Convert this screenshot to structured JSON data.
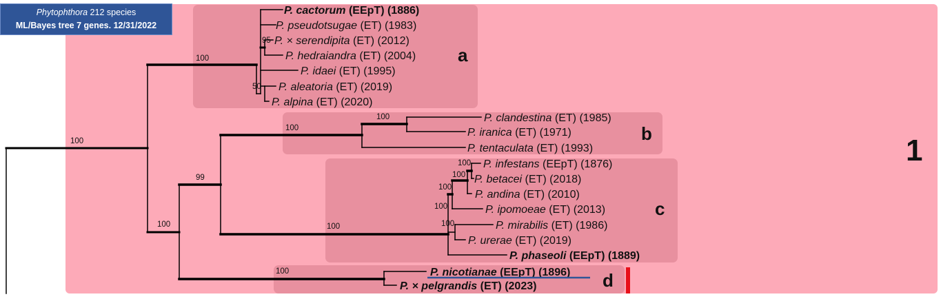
{
  "header": {
    "genus": "Phytophthora",
    "title_rest": " 212 species",
    "subtitle": "ML/Bayes tree 7 genes. 12/31/2022"
  },
  "colors": {
    "outer_group": "#fdaab8",
    "clade_box": "#e8909f",
    "title_bg": "#2f5597",
    "highlight_underline": "#2f5597",
    "marker": "#e8101a"
  },
  "clade1": {
    "label": "1"
  },
  "clades": {
    "a": {
      "letter": "a"
    },
    "b": {
      "letter": "b"
    },
    "c": {
      "letter": "c"
    },
    "d": {
      "letter": "d"
    }
  },
  "support": {
    "root_1": "100",
    "node_a": "100",
    "node_ser": "95",
    "node_ale": "50",
    "node_bcd": "100",
    "node_bc": "99",
    "node_b": "100",
    "node_b_inner": "100",
    "node_c": "100",
    "node_c1": "100",
    "node_c2": "100",
    "node_c3": "100",
    "node_c4": "100",
    "node_c5": "100",
    "node_d": "100"
  },
  "taxa": [
    {
      "species": "P. cactorum",
      "tail": " (EEpT) (1886)",
      "bold": true
    },
    {
      "species": "P. pseudotsugae",
      "tail": " (ET) (1983)",
      "bold": false
    },
    {
      "species": "P. × serendipita",
      "tail": " (ET) (2012)",
      "bold": false
    },
    {
      "species": "P. hedraiandra",
      "tail": " (ET) (2004)",
      "bold": false
    },
    {
      "species": "P. idaei",
      "tail": " (ET) (1995)",
      "bold": false
    },
    {
      "species": "P. aleatoria",
      "tail": " (ET) (2019)",
      "bold": false
    },
    {
      "species": "P. alpina",
      "tail": " (ET) (2020)",
      "bold": false
    },
    {
      "species": "P. clandestina",
      "tail": " (ET) (1985)",
      "bold": false
    },
    {
      "species": "P. iranica",
      "tail": " (ET) (1971)",
      "bold": false
    },
    {
      "species": "P. tentaculata",
      "tail": " (ET) (1993)",
      "bold": false
    },
    {
      "species": "P. infestans",
      "tail": " (EEpT) (1876)",
      "bold": false
    },
    {
      "species": "P. betacei",
      "tail": " (ET) (2018)",
      "bold": false
    },
    {
      "species": "P. andina",
      "tail": " (ET) (2010)",
      "bold": false
    },
    {
      "species": "P. ipomoeae",
      "tail": " (ET) (2013)",
      "bold": false
    },
    {
      "species": "P. mirabilis",
      "tail": " (ET) (1986)",
      "bold": false
    },
    {
      "species": "P. urerae",
      "tail": " (ET) (2019)",
      "bold": false
    },
    {
      "species": "P. phaseoli",
      "tail": " (EEpT) (1889)",
      "bold": true
    },
    {
      "species": "P. nicotianae",
      "tail": " (EEpT) (1896)",
      "bold": true
    },
    {
      "species": "P. × pelgrandis",
      "tail": " (ET) (2023)",
      "bold": true
    }
  ]
}
